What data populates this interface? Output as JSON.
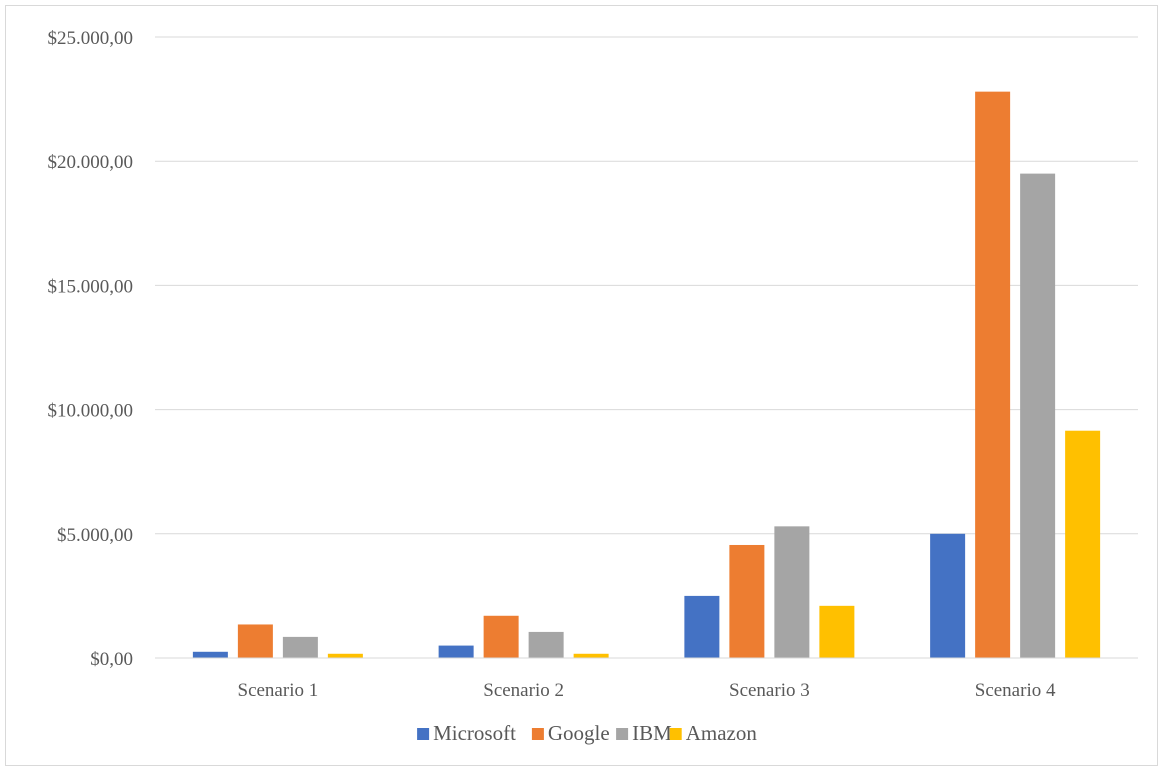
{
  "chart_data": {
    "type": "bar",
    "title": "",
    "xlabel": "",
    "ylabel": "",
    "categories": [
      "Scenario 1",
      "Scenario 2",
      "Scenario 3",
      "Scenario 4"
    ],
    "series": [
      {
        "name": "Microsoft",
        "color": "#4472c4",
        "values": [
          250,
          500,
          2500,
          5000
        ]
      },
      {
        "name": "Google",
        "color": "#ed7d31",
        "values": [
          1350,
          1700,
          4550,
          22800
        ]
      },
      {
        "name": "IBM",
        "color": "#a5a5a5",
        "values": [
          850,
          1050,
          5300,
          19500
        ]
      },
      {
        "name": "Amazon",
        "color": "#ffc000",
        "values": [
          170,
          170,
          2100,
          9150
        ]
      }
    ],
    "ylim": [
      0,
      25000
    ],
    "yticks": [
      0,
      5000,
      10000,
      15000,
      20000,
      25000
    ],
    "ytick_labels": [
      "$0,00",
      "$5.000,00",
      "$10.000,00",
      "$15.000,00",
      "$20.000,00",
      "$25.000,00"
    ],
    "grid": true,
    "legend_position": "bottom"
  }
}
